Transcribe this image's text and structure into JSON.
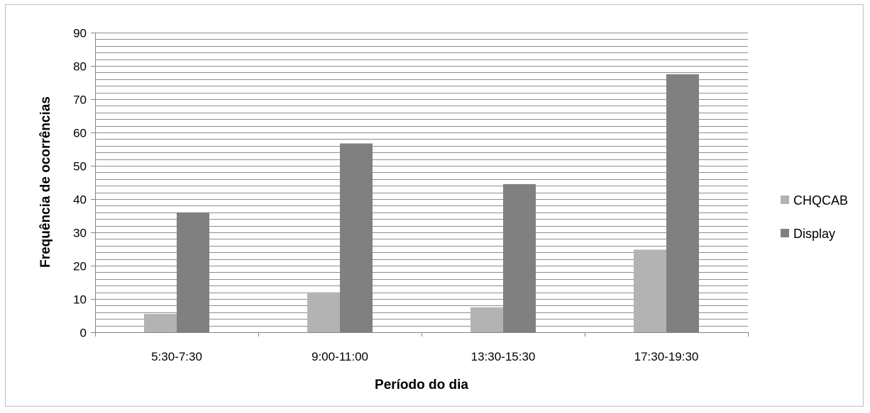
{
  "chart_data": {
    "type": "bar",
    "title": "",
    "xlabel": "Período do dia",
    "ylabel": "Frequência de ocorrências",
    "categories": [
      "5:30-7:30",
      "9:00-11:00",
      "13:30-15:30",
      "17:30-19:30"
    ],
    "series": [
      {
        "name": "CHQCAB",
        "values": [
          5.5,
          12,
          7.5,
          24.8
        ],
        "color": "#b3b3b3"
      },
      {
        "name": "Display",
        "values": [
          36,
          56.7,
          44.5,
          77.5
        ],
        "color": "#808080"
      }
    ],
    "ylim": [
      0,
      90
    ],
    "yticks": [
      0,
      10,
      20,
      30,
      40,
      50,
      60,
      70,
      80,
      90
    ],
    "minor_gridline_step": 2,
    "grid": true,
    "legend_position": "right"
  }
}
